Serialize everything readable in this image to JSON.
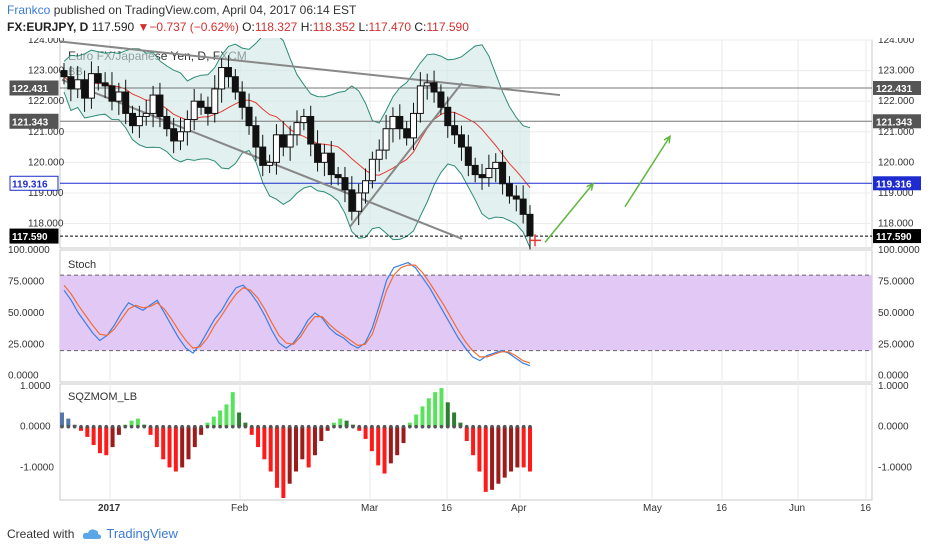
{
  "header": {
    "author": "Frankco",
    "published_text": "published on TradingView.com, April 04, 2017 06:14 EST",
    "symbol": "FX:EURJPY, D",
    "last": "117.590",
    "change": "▼−0.737 (−0.62%)",
    "open_label": "O:",
    "open": "118.327",
    "high_label": "H:",
    "high": "118.352",
    "low_label": "L:",
    "low": "117.470",
    "close_label": "C:",
    "close": "117.590"
  },
  "footer": {
    "created_with": "Created with",
    "brand": "TradingView"
  },
  "chart_data": [
    {
      "type": "candlestick",
      "title": "Euro FX/Japanese Yen, D, FXCM",
      "indicator": "BB",
      "ylim": [
        117.2,
        124.0
      ],
      "y_ticks": [
        "124.000",
        "123.000",
        "122.000",
        "121.000",
        "120.000",
        "119.000",
        "118.000"
      ],
      "x_ticks": [
        "2017",
        "Feb",
        "Mar",
        "16",
        "Apr",
        "May",
        "16",
        "Jun",
        "16"
      ],
      "price_labels": [
        {
          "value": 122.431,
          "text": "122.431",
          "style": "gray"
        },
        {
          "value": 121.343,
          "text": "121.343",
          "style": "gray"
        },
        {
          "value": 119.316,
          "text": "119.316",
          "style": "blue"
        },
        {
          "value": 117.59,
          "text": "117.590",
          "style": "black"
        }
      ],
      "closes": [
        122.8,
        122.4,
        122.7,
        122.1,
        122.9,
        122.6,
        122.5,
        122.0,
        122.3,
        121.6,
        121.2,
        121.5,
        121.6,
        122.2,
        121.5,
        121.1,
        120.7,
        121.0,
        121.4,
        122.0,
        121.8,
        121.6,
        122.4,
        123.1,
        122.8,
        122.3,
        121.8,
        121.2,
        120.5,
        119.9,
        120.0,
        120.9,
        120.5,
        120.9,
        121.3,
        121.5,
        120.6,
        120.0,
        120.3,
        119.6,
        119.5,
        119.1,
        118.4,
        119.0,
        119.4,
        120.1,
        120.4,
        121.1,
        121.5,
        121.1,
        120.8,
        121.6,
        122.5,
        122.6,
        122.3,
        121.8,
        121.2,
        120.9,
        120.5,
        119.9,
        119.6,
        119.5,
        119.8,
        120.0,
        119.3,
        118.9,
        118.8,
        118.3,
        117.6
      ],
      "x": [
        "Dec 27",
        "Dec 28",
        "Dec 29",
        "Dec 30",
        "Jan 2",
        "Jan 3",
        "Jan 4",
        "Jan 5",
        "Jan 6",
        "Jan 9",
        "Jan 10",
        "Jan 11",
        "Jan 12",
        "Jan 13",
        "Jan 16",
        "Jan 17",
        "Jan 18",
        "Jan 19",
        "Jan 20",
        "Jan 23",
        "Jan 24",
        "Jan 25",
        "Jan 26",
        "Jan 27",
        "Jan 30",
        "Jan 31",
        "Feb 1",
        "Feb 2",
        "Feb 3",
        "Feb 6",
        "Feb 7",
        "Feb 8",
        "Feb 9",
        "Feb 10",
        "Feb 13",
        "Feb 14",
        "Feb 15",
        "Feb 16",
        "Feb 17",
        "Feb 20",
        "Feb 21",
        "Feb 22",
        "Feb 23",
        "Feb 24",
        "Feb 27",
        "Feb 28",
        "Mar 1",
        "Mar 2",
        "Mar 3",
        "Mar 6",
        "Mar 7",
        "Mar 8",
        "Mar 9",
        "Mar 10",
        "Mar 13",
        "Mar 14",
        "Mar 15",
        "Mar 16",
        "Mar 17",
        "Mar 20",
        "Mar 21",
        "Mar 22",
        "Mar 23",
        "Mar 24",
        "Mar 27",
        "Mar 28",
        "Mar 29",
        "Mar 30",
        "Mar 31"
      ]
    },
    {
      "type": "line",
      "title": "Stoch",
      "ylim": [
        -5,
        100
      ],
      "y_ticks": [
        "100.0000",
        "75.0000",
        "50.0000",
        "25.0000",
        "0.0000"
      ],
      "band": [
        20,
        80
      ],
      "series": [
        {
          "color": "#3b7fe0",
          "values": [
            68,
            60,
            50,
            42,
            34,
            28,
            32,
            40,
            50,
            58,
            55,
            52,
            56,
            60,
            50,
            40,
            30,
            22,
            18,
            25,
            35,
            45,
            52,
            62,
            70,
            72,
            66,
            58,
            48,
            36,
            26,
            22,
            26,
            34,
            44,
            50,
            46,
            38,
            33,
            30,
            25,
            22,
            26,
            38,
            56,
            76,
            86,
            88,
            90,
            86,
            78,
            70,
            60,
            50,
            40,
            30,
            22,
            15,
            12,
            16,
            18,
            20,
            18,
            14,
            10,
            8
          ]
        },
        {
          "color": "#f26b38",
          "values": [
            72,
            65,
            56,
            48,
            40,
            33,
            32,
            37,
            45,
            53,
            56,
            54,
            55,
            58,
            53,
            45,
            36,
            28,
            22,
            23,
            30,
            40,
            48,
            57,
            65,
            70,
            68,
            62,
            53,
            42,
            32,
            26,
            25,
            31,
            40,
            47,
            47,
            41,
            36,
            32,
            28,
            24,
            25,
            33,
            50,
            68,
            80,
            86,
            88,
            88,
            82,
            74,
            65,
            56,
            46,
            36,
            27,
            20,
            15,
            15,
            17,
            19,
            19,
            16,
            12,
            10
          ]
        }
      ]
    },
    {
      "type": "bar",
      "title": "SQZMOM_LB",
      "ylim": [
        -1.8,
        1.05
      ],
      "y_ticks": [
        "1.0000",
        "0.0000",
        "-1.0000"
      ],
      "values": [
        0.35,
        0.2,
        0.05,
        -0.1,
        -0.25,
        -0.45,
        -0.65,
        -0.7,
        -0.5,
        -0.2,
        0.05,
        0.15,
        0.2,
        0.05,
        -0.2,
        -0.5,
        -0.8,
        -1.0,
        -1.1,
        -1.0,
        -0.8,
        -0.5,
        -0.2,
        0.1,
        0.25,
        0.4,
        0.55,
        0.85,
        0.35,
        0.1,
        -0.2,
        -0.5,
        -0.8,
        -1.1,
        -1.5,
        -1.75,
        -1.4,
        -1.1,
        -0.8,
        -1.0,
        -0.7,
        -0.35,
        -0.1,
        0.1,
        0.2,
        0.15,
        0.05,
        -0.1,
        -0.3,
        -0.6,
        -0.95,
        -1.15,
        -0.9,
        -0.7,
        -0.4,
        0.1,
        0.3,
        0.5,
        0.7,
        0.85,
        0.95,
        0.6,
        0.35,
        0.1,
        -0.35,
        -0.7,
        -1.1,
        -1.6,
        -1.55,
        -1.4,
        -1.25,
        -1.1,
        -1.0,
        -1.0,
        -1.1
      ]
    }
  ]
}
